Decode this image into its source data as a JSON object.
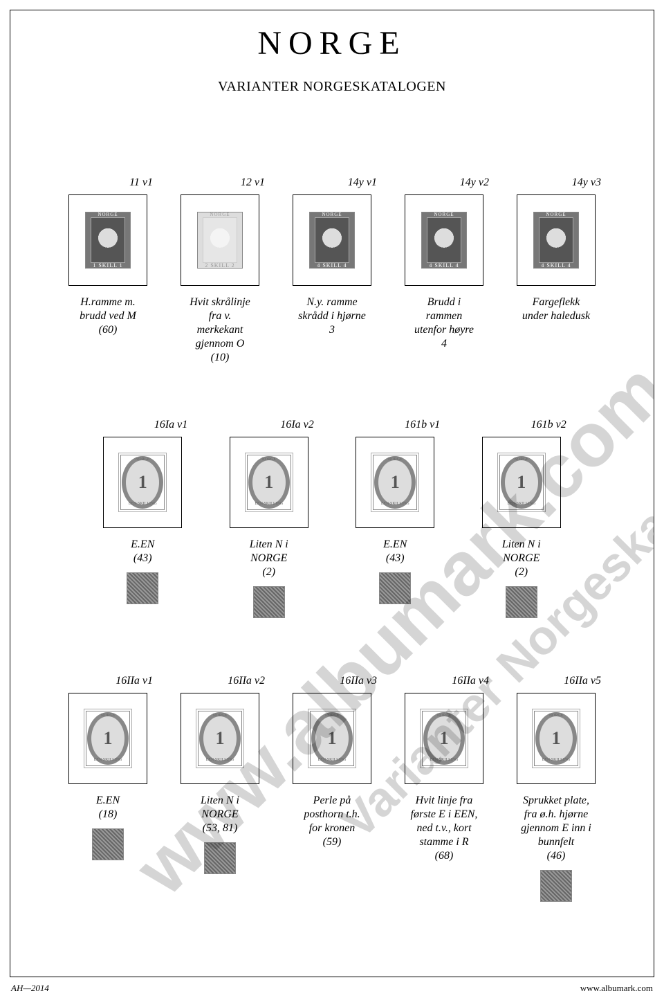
{
  "title": "NORGE",
  "subtitle": "VARIANTER NORGESKATALOGEN",
  "footer_left": "AH—2014",
  "footer_right": "www.albumark.com",
  "watermark_a": "www.albumark.com",
  "watermark_b": "Varianter Norgeskatalogen",
  "stamp_labels": {
    "norge": "NORGE",
    "skill1": "1 SKILL 1",
    "skill2": "2 SKILL 2",
    "skill4": "4 SKILL 4",
    "een": "EEN SKILLING"
  },
  "rows": [
    {
      "items": [
        {
          "code": "11 v1",
          "type": "lion",
          "variant": "d1",
          "desc": "H.ramme m.\nbrudd ved M\n(60)"
        },
        {
          "code": "12 v1",
          "type": "lion-light",
          "variant": "d2",
          "desc": "Hvit skrålinje\nfra v.\nmerkekant\ngjennom O\n(10)"
        },
        {
          "code": "14y v1",
          "type": "lion",
          "variant": "d4",
          "desc": "N.y. ramme\nskrådd i hjørne\n3"
        },
        {
          "code": "14y v2",
          "type": "lion",
          "variant": "d4",
          "desc": "Brudd i\nrammen\nutenfor høyre\n4"
        },
        {
          "code": "14y v3",
          "type": "lion",
          "variant": "d4",
          "desc": "Fargeflekk\nunder haledusk"
        }
      ]
    },
    {
      "items": [
        {
          "code": "16Ia v1",
          "type": "horn",
          "desc": "E.EN\n(43)",
          "thumb": true
        },
        {
          "code": "16Ia v2",
          "type": "horn",
          "desc": "Liten N i\nNORGE\n(2)",
          "thumb": true
        },
        {
          "code": "161b v1",
          "type": "horn",
          "desc": "E.EN\n(43)",
          "thumb": true
        },
        {
          "code": "161b v2",
          "type": "horn",
          "desc": "Liten N i\nNORGE\n(2)",
          "thumb": true
        }
      ]
    },
    {
      "items": [
        {
          "code": "16IIa v1",
          "type": "horn",
          "desc": "E.EN\n(18)",
          "thumb": true
        },
        {
          "code": "16IIa v2",
          "type": "horn",
          "desc": "Liten N i\nNORGE\n(53, 81)",
          "thumb": true
        },
        {
          "code": "16IIa v3",
          "type": "horn",
          "desc": "Perle på\nposthorn t.h.\nfor kronen\n(59)"
        },
        {
          "code": "16IIa v4",
          "type": "horn",
          "desc": "Hvit linje fra\nførste E i EEN,\nned t.v., kort\nstamme i R\n(68)"
        },
        {
          "code": "16IIa v5",
          "type": "horn",
          "desc": "Sprukket plate,\nfra ø.h. hjørne\ngjennom E inn i\nbunnfelt\n(46)",
          "thumb": true
        }
      ]
    }
  ]
}
